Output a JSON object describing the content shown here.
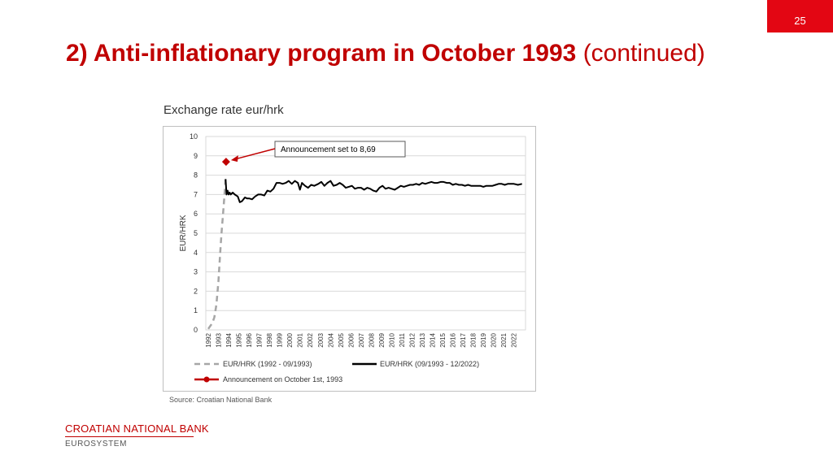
{
  "page_number": "25",
  "title": {
    "main": "2) Anti-inflationary program in October 1993",
    "suffix": "(continued)"
  },
  "chart_caption": "Exchange rate eur/hrk",
  "source": "Source: Croatian National Bank",
  "logo": {
    "name": "CROATIAN NATIONAL BANK",
    "sub": "EUROSYSTEM"
  },
  "colors": {
    "accent": "#e30613",
    "title": "#c00000",
    "announcement": "#c00000",
    "pre_series": "#a6a6a6",
    "post_series": "#000000"
  },
  "chart_data": {
    "type": "line",
    "title": "",
    "xlabel": "",
    "ylabel": "EUR/HRK",
    "ylim": [
      0,
      10
    ],
    "yticks": [
      "0",
      "1",
      "2",
      "3",
      "4",
      "5",
      "6",
      "7",
      "8",
      "9",
      "10"
    ],
    "xticks": [
      "1992",
      "1993",
      "1994",
      "1995",
      "1996",
      "1997",
      "1998",
      "1999",
      "2000",
      "2001",
      "2002",
      "2003",
      "2004",
      "2005",
      "2006",
      "2007",
      "2008",
      "2009",
      "2010",
      "2011",
      "2012",
      "2013",
      "2014",
      "2015",
      "2016",
      "2017",
      "2018",
      "2019",
      "2020",
      "2021",
      "2022"
    ],
    "grid": true,
    "legend_position": "bottom",
    "series": [
      {
        "name": "EUR/HRK (1992 - 09/1993)",
        "style": "dashed",
        "color": "#a6a6a6",
        "x": [
          1992.0,
          1992.2,
          1992.4,
          1992.6,
          1992.8,
          1993.0,
          1993.15,
          1993.3,
          1993.45,
          1993.6,
          1993.7
        ],
        "y": [
          0.05,
          0.2,
          0.35,
          0.65,
          1.3,
          2.5,
          3.8,
          5.0,
          6.0,
          7.0,
          7.8
        ]
      },
      {
        "name": "EUR/HRK (09/1993 - 12/2022)",
        "style": "solid",
        "color": "#000000",
        "x": [
          1993.7,
          1993.8,
          1993.9,
          1994.0,
          1994.1,
          1994.2,
          1994.4,
          1994.6,
          1994.9,
          1995.1,
          1995.3,
          1995.6,
          1995.8,
          1996.0,
          1996.3,
          1996.6,
          1996.9,
          1997.2,
          1997.5,
          1997.8,
          1998.1,
          1998.4,
          1998.7,
          1999.0,
          1999.3,
          1999.6,
          1999.9,
          2000.2,
          2000.5,
          2000.8,
          2001.0,
          2001.2,
          2001.5,
          2001.8,
          2002.1,
          2002.4,
          2002.8,
          2003.1,
          2003.4,
          2003.7,
          2004.0,
          2004.3,
          2004.6,
          2004.9,
          2005.2,
          2005.5,
          2005.8,
          2006.1,
          2006.4,
          2006.7,
          2007.0,
          2007.3,
          2007.6,
          2007.9,
          2008.2,
          2008.5,
          2008.8,
          2009.1,
          2009.4,
          2009.7,
          2010.0,
          2010.3,
          2010.6,
          2010.9,
          2011.2,
          2011.5,
          2011.8,
          2012.1,
          2012.4,
          2012.7,
          2013.0,
          2013.3,
          2013.6,
          2013.9,
          2014.2,
          2014.5,
          2014.8,
          2015.1,
          2015.4,
          2015.7,
          2016.0,
          2016.3,
          2016.6,
          2016.9,
          2017.2,
          2017.5,
          2017.8,
          2018.1,
          2018.4,
          2018.7,
          2019.0,
          2019.3,
          2019.6,
          2019.9,
          2020.2,
          2020.5,
          2020.8,
          2021.1,
          2021.4,
          2021.7,
          2022.0,
          2022.4,
          2022.8
        ],
        "y": [
          7.8,
          7.0,
          7.2,
          7.0,
          7.1,
          7.0,
          7.1,
          7.0,
          6.9,
          6.6,
          6.65,
          6.85,
          6.8,
          6.8,
          6.75,
          6.9,
          7.0,
          7.0,
          6.95,
          7.2,
          7.15,
          7.3,
          7.6,
          7.6,
          7.55,
          7.6,
          7.7,
          7.55,
          7.7,
          7.6,
          7.25,
          7.6,
          7.45,
          7.35,
          7.5,
          7.45,
          7.55,
          7.65,
          7.45,
          7.6,
          7.7,
          7.45,
          7.5,
          7.6,
          7.5,
          7.35,
          7.4,
          7.45,
          7.3,
          7.35,
          7.35,
          7.25,
          7.35,
          7.3,
          7.2,
          7.15,
          7.35,
          7.45,
          7.3,
          7.35,
          7.3,
          7.25,
          7.35,
          7.45,
          7.4,
          7.45,
          7.5,
          7.5,
          7.55,
          7.5,
          7.6,
          7.55,
          7.6,
          7.65,
          7.6,
          7.6,
          7.65,
          7.65,
          7.6,
          7.6,
          7.5,
          7.55,
          7.5,
          7.5,
          7.45,
          7.5,
          7.45,
          7.45,
          7.45,
          7.45,
          7.4,
          7.45,
          7.45,
          7.45,
          7.5,
          7.55,
          7.55,
          7.5,
          7.55,
          7.55,
          7.55,
          7.5,
          7.55
        ]
      },
      {
        "name": "Announcement on October 1st, 1993",
        "style": "marker",
        "color": "#c00000",
        "x": [
          1993.75
        ],
        "y": [
          8.69
        ]
      }
    ],
    "annotations": [
      {
        "text": "Announcement set to 8,69",
        "target_x": 1993.75,
        "target_y": 8.69
      }
    ]
  }
}
